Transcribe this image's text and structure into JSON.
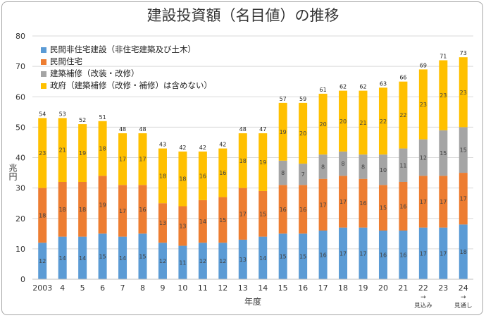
{
  "chart_data": {
    "type": "bar",
    "stacked": true,
    "title": "建設投資額（名目値）の推移",
    "xlabel": "年度",
    "ylabel": "兆円",
    "ylim": [
      0,
      80
    ],
    "yticks": [
      0,
      10,
      20,
      30,
      40,
      50,
      60,
      70,
      80
    ],
    "grid": true,
    "legend_position": "top-left",
    "categories": [
      "2003",
      "4",
      "5",
      "6",
      "7",
      "8",
      "9",
      "10",
      "11",
      "12",
      "13",
      "14",
      "15",
      "16",
      "17",
      "18",
      "19",
      "20",
      "21",
      "22",
      "23",
      "24"
    ],
    "category_notes": {
      "22": "見込み",
      "24": "見通し"
    },
    "series": [
      {
        "name": "民間非住宅建設（非住宅建築及び土木）",
        "color": "#5b9bd5",
        "values": [
          12,
          14,
          14,
          15,
          14,
          15,
          12,
          11,
          12,
          12,
          13,
          14,
          15,
          15,
          16,
          17,
          17,
          16,
          16,
          17,
          17,
          18
        ]
      },
      {
        "name": "民間住宅",
        "color": "#ed7d31",
        "values": [
          18,
          18,
          18,
          19,
          17,
          16,
          13,
          13,
          14,
          15,
          17,
          15,
          16,
          16,
          17,
          17,
          16,
          15,
          16,
          17,
          17,
          17
        ]
      },
      {
        "name": "建築補修（改装・改修）",
        "color": "#a5a5a5",
        "values": [
          null,
          null,
          null,
          null,
          null,
          null,
          null,
          null,
          null,
          null,
          null,
          null,
          8,
          7,
          8,
          8,
          8,
          10,
          11,
          12,
          15,
          15
        ]
      },
      {
        "name": "政府（建築補修（改修・補修）は含めない）",
        "color": "#ffc000",
        "values": [
          23,
          21,
          19,
          18,
          17,
          17,
          18,
          18,
          16,
          16,
          18,
          19,
          19,
          20,
          20,
          20,
          21,
          22,
          22,
          23,
          23,
          23
        ]
      }
    ],
    "totals": [
      54,
      53,
      52,
      51,
      48,
      48,
      43,
      42,
      42,
      42,
      48,
      47,
      57,
      59,
      61,
      62,
      62,
      63,
      66,
      69,
      71,
      73
    ]
  }
}
